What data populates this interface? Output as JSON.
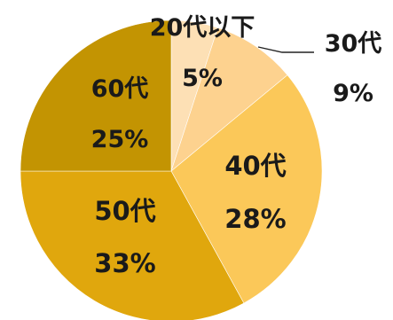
{
  "chart_data": {
    "type": "pie",
    "start_angle": "12 o'clock",
    "direction": "clockwise",
    "slices": [
      {
        "name": "20代以下",
        "value": 5,
        "label": "5%",
        "color": "#fde0b5"
      },
      {
        "name": "30代",
        "value": 9,
        "label": "9%",
        "color": "#fdd28f"
      },
      {
        "name": "40代",
        "value": 28,
        "label": "28%",
        "color": "#fbc859"
      },
      {
        "name": "50代",
        "value": 33,
        "label": "33%",
        "color": "#e0a70d"
      },
      {
        "name": "60代",
        "value": 25,
        "label": "25%",
        "color": "#c39402"
      }
    ],
    "leader_line_color": "#222222"
  }
}
